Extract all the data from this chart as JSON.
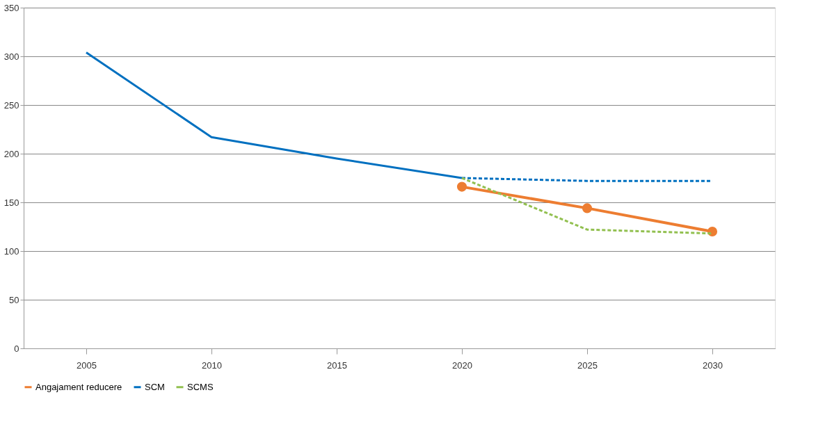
{
  "chart_data": {
    "type": "line",
    "categories": [
      "2005",
      "2010",
      "2015",
      "2020",
      "2025",
      "2030"
    ],
    "series": [
      {
        "name": "Angajament reducere",
        "color": "#ed7d31",
        "marker": "circle",
        "line_style": "solid",
        "values": [
          null,
          null,
          null,
          166,
          144,
          120
        ]
      },
      {
        "name": "SCM",
        "color": "#0070c0",
        "line_style": "solid",
        "values": [
          304,
          217,
          195,
          175,
          null,
          null
        ]
      },
      {
        "color": "#0070c0",
        "line_style": "dashed",
        "values": [
          null,
          null,
          null,
          175,
          172,
          172
        ]
      },
      {
        "name": "SCMS",
        "color": "#92c050",
        "line_style": "dashed",
        "values": [
          null,
          null,
          null,
          175,
          122,
          118
        ]
      }
    ],
    "ylim": [
      0,
      350
    ],
    "yticks": [
      0,
      50,
      100,
      150,
      200,
      250,
      300,
      350
    ],
    "grid": "y",
    "legend": "bottom"
  }
}
